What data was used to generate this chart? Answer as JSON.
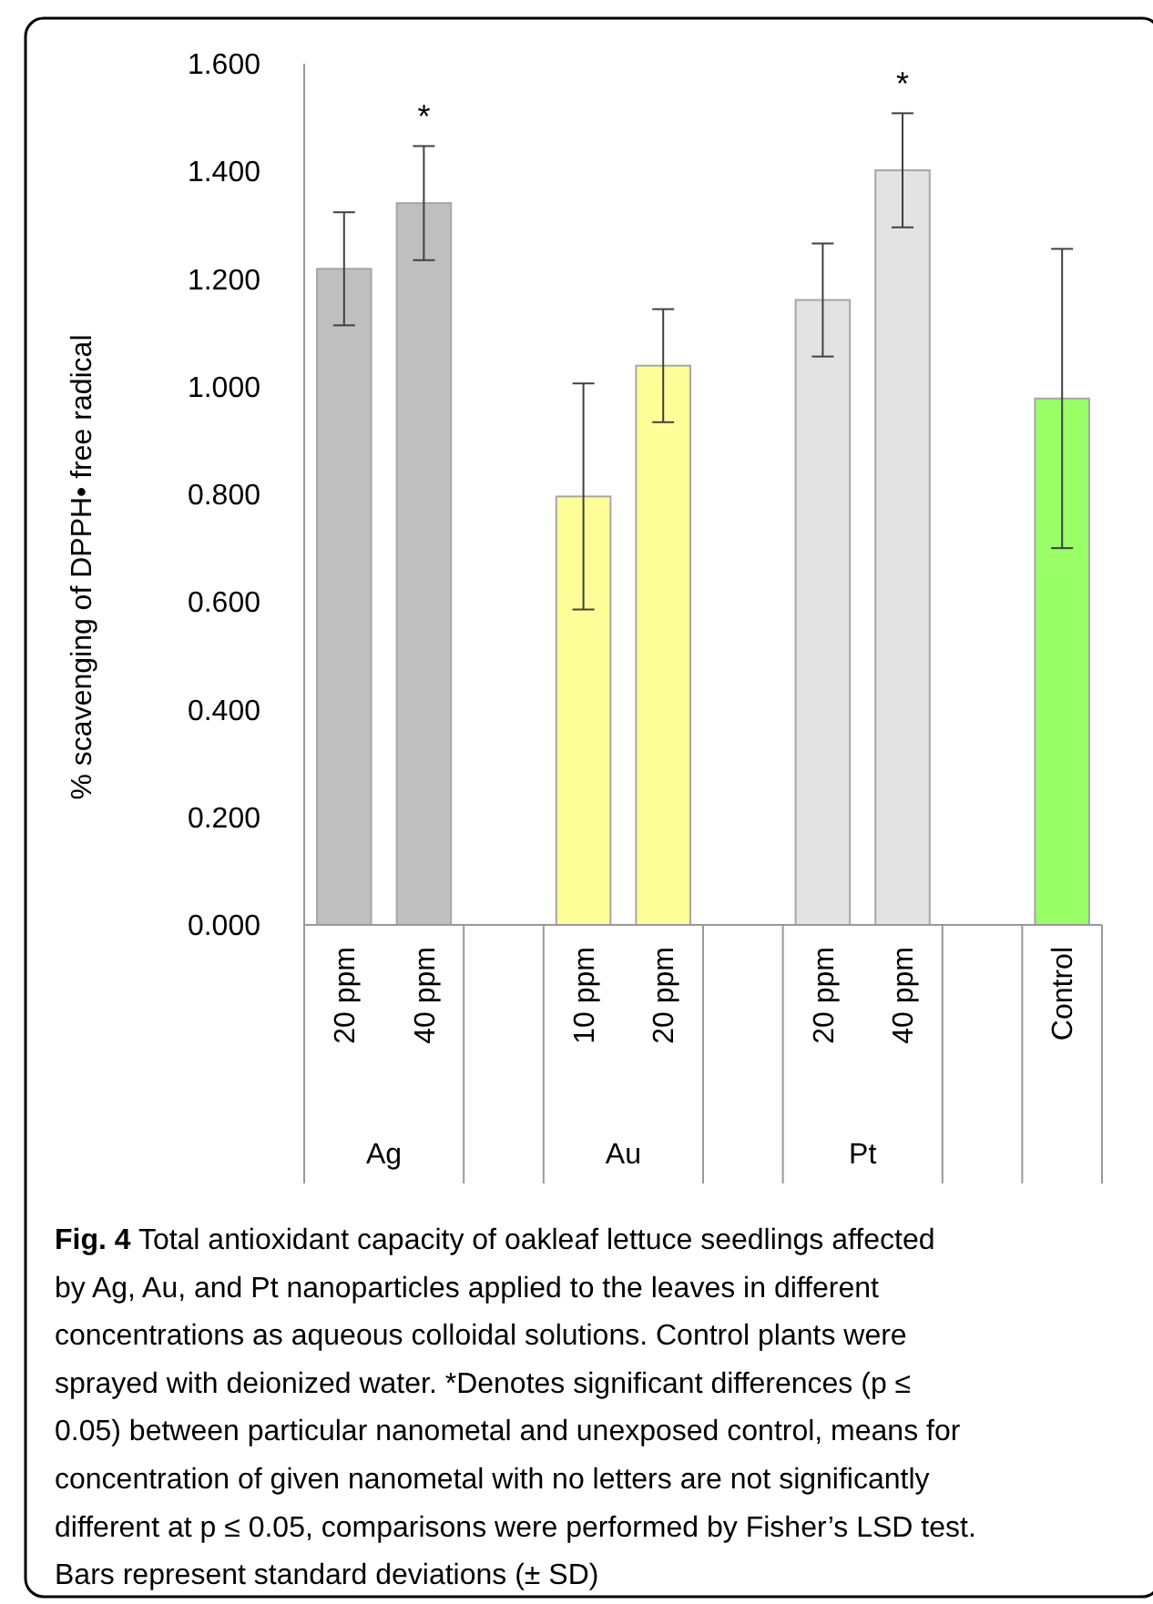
{
  "chart_data": {
    "type": "bar",
    "ylabel": "% scavenging of DPPH• free radical",
    "categories": [
      "20 ppm",
      "40 ppm",
      null,
      "10 ppm",
      "20 ppm",
      null,
      "20 ppm",
      "40 ppm",
      null,
      "Control"
    ],
    "values": [
      1.219,
      1.341,
      null,
      0.796,
      1.039,
      null,
      1.161,
      1.402,
      null,
      0.978
    ],
    "errors": [
      0.105,
      0.106,
      null,
      0.21,
      0.105,
      null,
      0.105,
      0.106,
      null,
      0.278
    ],
    "value_labels": [
      null,
      "*",
      null,
      null,
      null,
      null,
      null,
      "*",
      null,
      null
    ],
    "colors": [
      "#bfbfbf",
      "#bfbfbf",
      null,
      "#ffff99",
      "#ffff99",
      null,
      "#e3e3e3",
      "#e3e3e3",
      null,
      "#99ff66"
    ],
    "ylim": [
      0,
      1.6
    ],
    "yticks": [
      {
        "value": 0,
        "label": "0.000"
      },
      {
        "value": 0.2,
        "label": "0.200"
      },
      {
        "value": 0.4,
        "label": "0.400"
      },
      {
        "value": 0.6,
        "label": "0.600"
      },
      {
        "value": 0.8,
        "label": "0.800"
      },
      {
        "value": 1.0,
        "label": "1.000"
      },
      {
        "value": 1.2,
        "label": "1.200"
      },
      {
        "value": 1.4,
        "label": "1.400"
      },
      {
        "value": 1.6,
        "label": "1.600"
      }
    ],
    "grid": false,
    "annotations": [
      "Ag",
      "Au",
      "Pt",
      "Fig. 4 Total antioxidant capacity of oakleaf lettuce seedlings affected by Ag, Au, and Pt nanoparticles applied to the leaves in different concentrations as aqueous colloidal solutions. Control plants were sprayed with deionized water. *Denotes significant differences (p ≤ 0.05) between particular nanometal and unexposed control, means for concentration of given nanometal with no letters are not significantly different at p ≤ 0.05, comparisons were performed by Fisher’s LSD test. Bars represent standard deviations (± SD)"
    ]
  }
}
